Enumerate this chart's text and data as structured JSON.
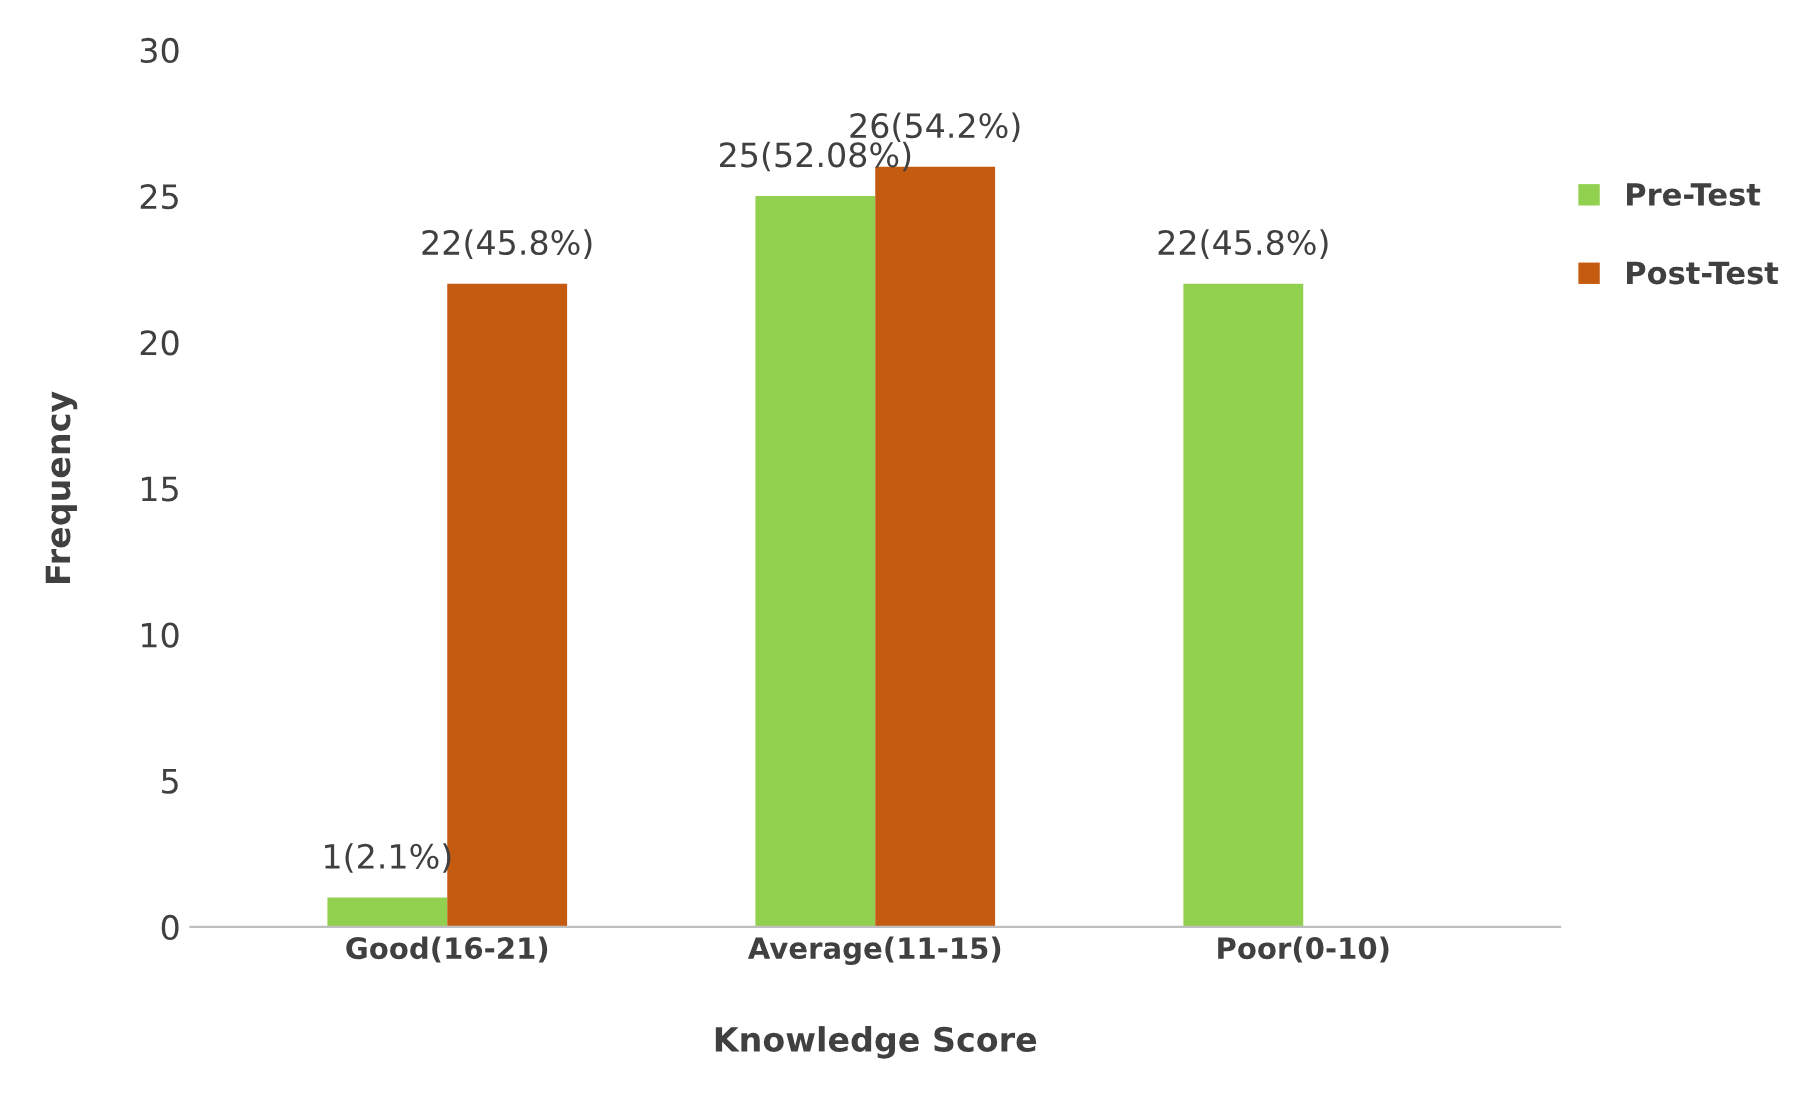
{
  "chart_data": {
    "type": "bar",
    "xlabel": "Knowledge Score",
    "ylabel": "Frequency",
    "categories": [
      "Good(16-21)",
      "Average(11-15)",
      "Poor(0-10)"
    ],
    "series": [
      {
        "name": "Pre-Test",
        "color": "#92d050",
        "values": [
          1,
          25,
          22
        ],
        "value_labels": [
          "1(2.1%)",
          "25(52.08%)",
          "22(45.8%)"
        ]
      },
      {
        "name": "Post-Test",
        "color": "#c55a11",
        "values": [
          22,
          26,
          null
        ],
        "value_labels": [
          "22(45.8%)",
          "26(54.2%)",
          null
        ]
      }
    ],
    "ylim": [
      0,
      30
    ],
    "yticks": [
      0,
      5,
      10,
      15,
      20,
      25,
      30
    ],
    "grid": false,
    "legend": "right"
  }
}
